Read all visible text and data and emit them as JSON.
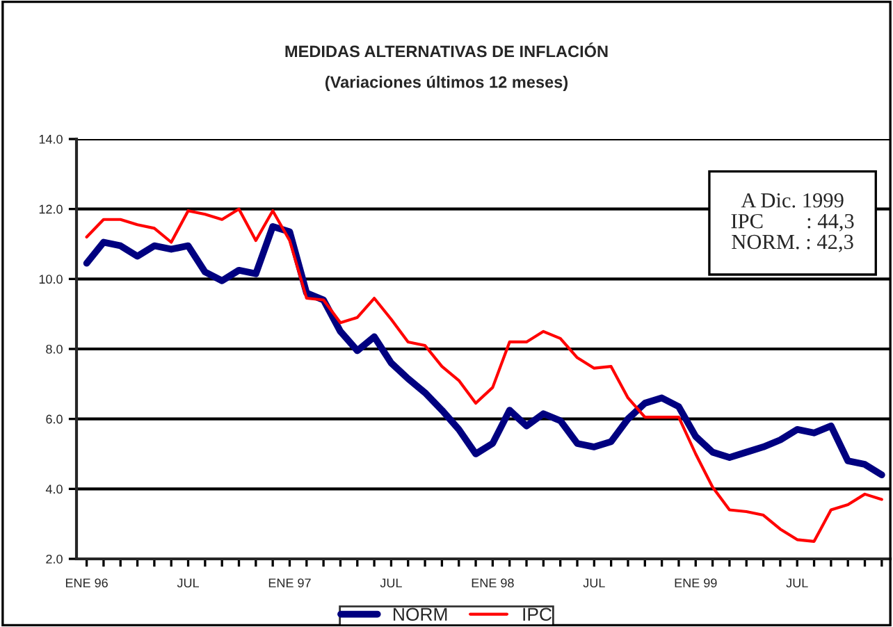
{
  "chart_data": {
    "type": "line",
    "title": "MEDIDAS ALTERNATIVAS DE INFLACIÓN",
    "subtitle": "(Variaciones últimos 12 meses)",
    "categories": [
      "ENE 96",
      null,
      null,
      null,
      null,
      null,
      "JUL",
      null,
      null,
      null,
      null,
      null,
      "ENE 97",
      null,
      null,
      null,
      null,
      null,
      "JUL",
      null,
      null,
      null,
      null,
      null,
      "ENE 98",
      null,
      null,
      null,
      null,
      null,
      "JUL",
      null,
      null,
      null,
      null,
      null,
      "ENE 99",
      null,
      null,
      null,
      null,
      null,
      "JUL",
      null,
      null,
      null,
      null,
      null
    ],
    "series": [
      {
        "name": "NORM",
        "color": "#000080",
        "line_style": "solid",
        "values": [
          10.45,
          11.05,
          10.95,
          10.65,
          10.95,
          10.85,
          10.95,
          10.2,
          9.95,
          10.25,
          10.15,
          11.5,
          11.35,
          9.6,
          9.4,
          8.5,
          7.95,
          8.35,
          7.6,
          7.15,
          6.75,
          6.25,
          5.7,
          5.0,
          5.3,
          6.25,
          5.8,
          6.15,
          5.95,
          5.3,
          5.2,
          5.35,
          6.0,
          6.45,
          6.6,
          6.35,
          5.5,
          5.05,
          4.9,
          5.05,
          5.2,
          5.4,
          5.7,
          5.6,
          5.8,
          4.8,
          4.7,
          4.4
        ]
      },
      {
        "name": "IPC",
        "color": "#ff0000",
        "line_style": "solid",
        "values": [
          11.2,
          11.7,
          11.7,
          11.55,
          11.45,
          11.05,
          11.95,
          11.85,
          11.7,
          12.0,
          11.1,
          11.95,
          11.1,
          9.45,
          9.4,
          8.75,
          8.9,
          9.45,
          8.85,
          8.2,
          8.1,
          7.5,
          7.1,
          6.45,
          6.9,
          8.2,
          8.2,
          8.5,
          8.3,
          7.75,
          7.45,
          7.5,
          6.6,
          6.05,
          6.05,
          6.05,
          5.0,
          4.05,
          3.4,
          3.35,
          3.25,
          2.85,
          2.55,
          2.5,
          3.4,
          3.55,
          3.85,
          3.7
        ]
      }
    ],
    "ylim": [
      2,
      14
    ],
    "yticks": [
      {
        "value": 2,
        "label": "2.0"
      },
      {
        "value": 4,
        "label": "4.0"
      },
      {
        "value": 6,
        "label": "6.0"
      },
      {
        "value": 8,
        "label": "8.0"
      },
      {
        "value": 10,
        "label": "10.0"
      },
      {
        "value": 12,
        "label": "12.0"
      },
      {
        "value": 14,
        "label": "14.0"
      }
    ],
    "grid": "y",
    "legend": "bottom",
    "marker": "none",
    "annotations": [
      "A Dic. 1999\nIPC        : 44,3\nNORM. : 42,3"
    ]
  }
}
